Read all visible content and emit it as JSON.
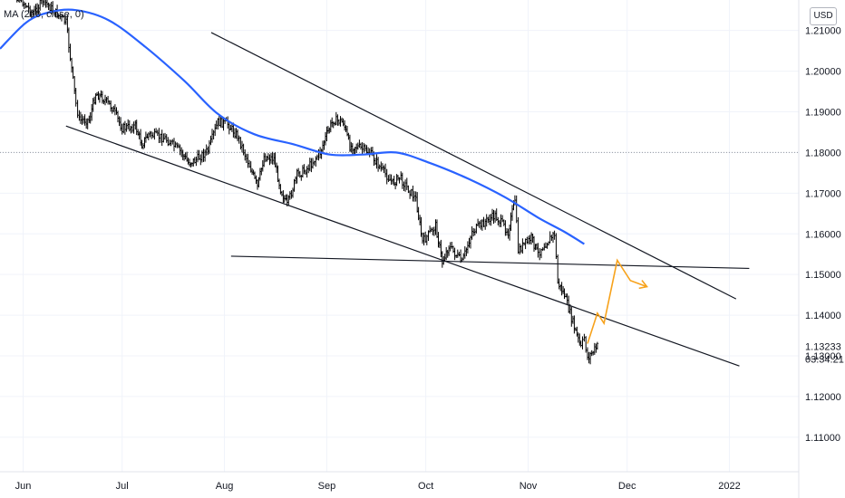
{
  "legend": {
    "label": "MA (200, close, 0)"
  },
  "currency": {
    "label": "USD"
  },
  "chart_data": {
    "type": "candlestick",
    "instrument_currency": "USD",
    "y_axis": {
      "ticks": [
        "1.21000",
        "1.20000",
        "1.19000",
        "1.18000",
        "1.17000",
        "1.16000",
        "1.15000",
        "1.14000",
        "1.13000",
        "1.12000",
        "1.11000"
      ],
      "tick_values": [
        1.21,
        1.2,
        1.19,
        1.18,
        1.17,
        1.16,
        1.15,
        1.14,
        1.13,
        1.12,
        1.11
      ],
      "range": [
        1.1015,
        1.2175
      ]
    },
    "x_axis": {
      "ticks": [
        "Jun",
        "Jul",
        "Aug",
        "Sep",
        "Oct",
        "Nov",
        "Dec",
        "2022"
      ],
      "range": [
        "2021-05-25",
        "2022-01-22"
      ]
    },
    "current_price": {
      "value": "1.13233",
      "countdown": "03:34:21",
      "color": "#131722"
    },
    "price_path": [
      [
        "2021-05-25",
        1.2205
      ],
      [
        "2021-05-31",
        1.218
      ],
      [
        "2021-06-04",
        1.214
      ],
      [
        "2021-06-07",
        1.2175
      ],
      [
        "2021-06-10",
        1.215
      ],
      [
        "2021-06-14",
        1.212
      ],
      [
        "2021-06-17",
        1.192
      ],
      [
        "2021-06-18",
        1.188
      ],
      [
        "2021-06-21",
        1.188
      ],
      [
        "2021-06-23",
        1.1945
      ],
      [
        "2021-06-25",
        1.1935
      ],
      [
        "2021-06-28",
        1.191
      ],
      [
        "2021-07-01",
        1.186
      ],
      [
        "2021-07-05",
        1.1865
      ],
      [
        "2021-07-07",
        1.182
      ],
      [
        "2021-07-09",
        1.1845
      ],
      [
        "2021-07-14",
        1.1835
      ],
      [
        "2021-07-19",
        1.18
      ],
      [
        "2021-07-21",
        1.1775
      ],
      [
        "2021-07-23",
        1.178
      ],
      [
        "2021-07-27",
        1.1805
      ],
      [
        "2021-07-30",
        1.1875
      ],
      [
        "2021-08-02",
        1.187
      ],
      [
        "2021-08-05",
        1.184
      ],
      [
        "2021-08-09",
        1.176
      ],
      [
        "2021-08-11",
        1.1715
      ],
      [
        "2021-08-13",
        1.179
      ],
      [
        "2021-08-16",
        1.1785
      ],
      [
        "2021-08-18",
        1.171
      ],
      [
        "2021-08-20",
        1.167
      ],
      [
        "2021-08-23",
        1.1745
      ],
      [
        "2021-08-26",
        1.176
      ],
      [
        "2021-08-30",
        1.18
      ],
      [
        "2021-09-01",
        1.1845
      ],
      [
        "2021-09-03",
        1.188
      ],
      [
        "2021-09-06",
        1.1875
      ],
      [
        "2021-09-08",
        1.1815
      ],
      [
        "2021-09-10",
        1.1815
      ],
      [
        "2021-09-14",
        1.18
      ],
      [
        "2021-09-17",
        1.1765
      ],
      [
        "2021-09-21",
        1.1725
      ],
      [
        "2021-09-23",
        1.174
      ],
      [
        "2021-09-28",
        1.1685
      ],
      [
        "2021-09-30",
        1.158
      ],
      [
        "2021-10-04",
        1.162
      ],
      [
        "2021-10-06",
        1.153
      ],
      [
        "2021-10-08",
        1.157
      ],
      [
        "2021-10-12",
        1.153
      ],
      [
        "2021-10-15",
        1.1605
      ],
      [
        "2021-10-19",
        1.163
      ],
      [
        "2021-10-22",
        1.1645
      ],
      [
        "2021-10-26",
        1.1605
      ],
      [
        "2021-10-28",
        1.1685
      ],
      [
        "2021-10-29",
        1.156
      ],
      [
        "2021-11-02",
        1.159
      ],
      [
        "2021-11-04",
        1.155
      ],
      [
        "2021-11-05",
        1.1565
      ],
      [
        "2021-11-09",
        1.16
      ],
      [
        "2021-11-10",
        1.148
      ],
      [
        "2021-11-12",
        1.145
      ],
      [
        "2021-11-15",
        1.137
      ],
      [
        "2021-11-17",
        1.132
      ],
      [
        "2021-11-18",
        1.1345
      ],
      [
        "2021-11-19",
        1.1295
      ],
      [
        "2021-11-22",
        1.1323
      ]
    ],
    "moving_average": {
      "name": "MA (200, close, 0)",
      "color": "#2962ff",
      "points": [
        [
          "2021-05-25",
          1.2055
        ],
        [
          "2021-06-02",
          1.212
        ],
        [
          "2021-06-09",
          1.2145
        ],
        [
          "2021-06-17",
          1.215
        ],
        [
          "2021-06-27",
          1.2125
        ],
        [
          "2021-07-08",
          1.206
        ],
        [
          "2021-07-20",
          1.1975
        ],
        [
          "2021-07-30",
          1.1895
        ],
        [
          "2021-08-10",
          1.1845
        ],
        [
          "2021-08-22",
          1.182
        ],
        [
          "2021-09-02",
          1.1795
        ],
        [
          "2021-09-12",
          1.1795
        ],
        [
          "2021-09-22",
          1.18
        ],
        [
          "2021-10-02",
          1.1775
        ],
        [
          "2021-10-14",
          1.1735
        ],
        [
          "2021-10-25",
          1.169
        ],
        [
          "2021-11-04",
          1.164
        ],
        [
          "2021-11-12",
          1.1605
        ],
        [
          "2021-11-18",
          1.1575
        ]
      ]
    },
    "trendlines": [
      {
        "name": "upper-channel",
        "color": "#131722",
        "from": [
          "2021-07-28",
          1.2095
        ],
        "to": [
          "2022-01-03",
          1.144
        ]
      },
      {
        "name": "lower-channel",
        "color": "#131722",
        "from": [
          "2021-06-14",
          1.1865
        ],
        "to": [
          "2022-01-04",
          1.1275
        ]
      },
      {
        "name": "horizontal-support",
        "color": "#131722",
        "from": [
          "2021-08-03",
          1.1545
        ],
        "to": [
          "2022-01-07",
          1.1515
        ]
      }
    ],
    "projection": {
      "color": "#f7a21b",
      "points": [
        [
          "2021-11-19",
          1.133
        ],
        [
          "2021-11-22",
          1.1405
        ],
        [
          "2021-11-24",
          1.138
        ],
        [
          "2021-11-28",
          1.1535
        ],
        [
          "2021-12-02",
          1.1485
        ],
        [
          "2021-12-07",
          1.147
        ]
      ]
    },
    "dotted_level": 1.18,
    "grid": true
  }
}
